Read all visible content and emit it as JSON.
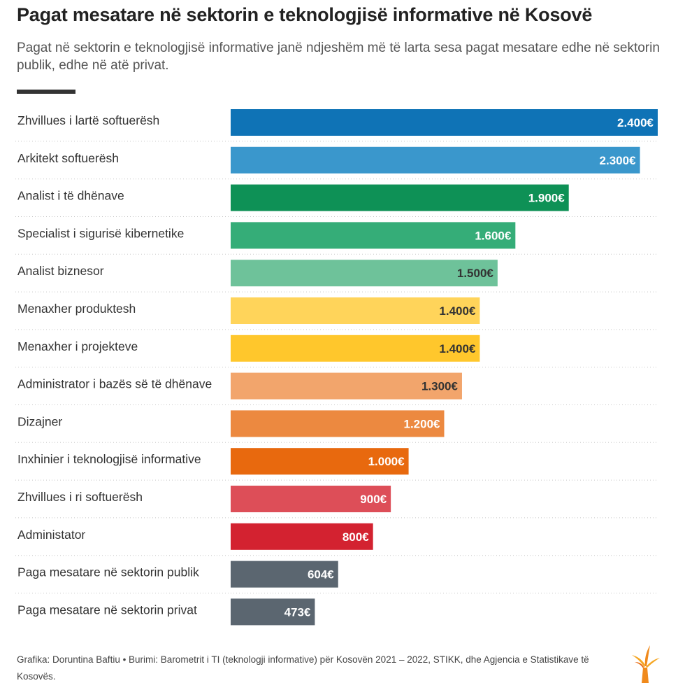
{
  "title": "Pagat mesatare në sektorin e teknologjisë informative në Kosovë",
  "subtitle": "Pagat në sektorin e teknologjisë informative janë ndjeshëm më të larta sesa pagat mesatare edhe në sektorin publik, edhe në atë privat.",
  "footer": "Grafika: Doruntina Baftiu • Burimi: Barometrit i TI (teknologji informative) për Kosovën 2021 – 2022, STIKK, dhe Agjencia e Statistikave të Kosovës.",
  "chart_data": {
    "type": "bar",
    "orientation": "horizontal",
    "title": "Pagat mesatare në sektorin e teknologjisë informative në Kosovë",
    "xlabel": "",
    "ylabel": "",
    "xlim": [
      0,
      2400
    ],
    "grid": false,
    "categories": [
      "Zhvillues i lartë softuerësh",
      "Arkitekt softuerësh",
      "Analist i të dhënave",
      "Specialist i sigurisë kibernetike",
      "Analist biznesor",
      "Menaxher produktesh",
      "Menaxher i projekteve",
      "Administrator i bazës së të dhënave",
      "Dizajner",
      "Inxhinier i teknologjisë informative",
      "Zhvillues i ri softuerësh",
      "Administator",
      "Paga mesatare në sektorin publik",
      "Paga mesatare në sektorin privat"
    ],
    "values": [
      2400,
      2300,
      1900,
      1600,
      1500,
      1400,
      1400,
      1300,
      1200,
      1000,
      900,
      800,
      604,
      473
    ],
    "value_labels": [
      "2.400€",
      "2.300€",
      "1.900€",
      "1.600€",
      "1.500€",
      "1.400€",
      "1.400€",
      "1.300€",
      "1.200€",
      "1.000€",
      "900€",
      "800€",
      "604€",
      "473€"
    ],
    "colors": [
      "#0f73b6",
      "#3a97cc",
      "#0e9156",
      "#35ad78",
      "#6ec29a",
      "#ffd45a",
      "#ffc72c",
      "#f2a56c",
      "#ec8940",
      "#e8690e",
      "#dd4e58",
      "#d32230",
      "#5b6670",
      "#5b6670"
    ],
    "label_colors": [
      "#ffffff",
      "#ffffff",
      "#ffffff",
      "#ffffff",
      "#333333",
      "#333333",
      "#333333",
      "#333333",
      "#ffffff",
      "#ffffff",
      "#ffffff",
      "#ffffff",
      "#ffffff",
      "#ffffff"
    ]
  }
}
